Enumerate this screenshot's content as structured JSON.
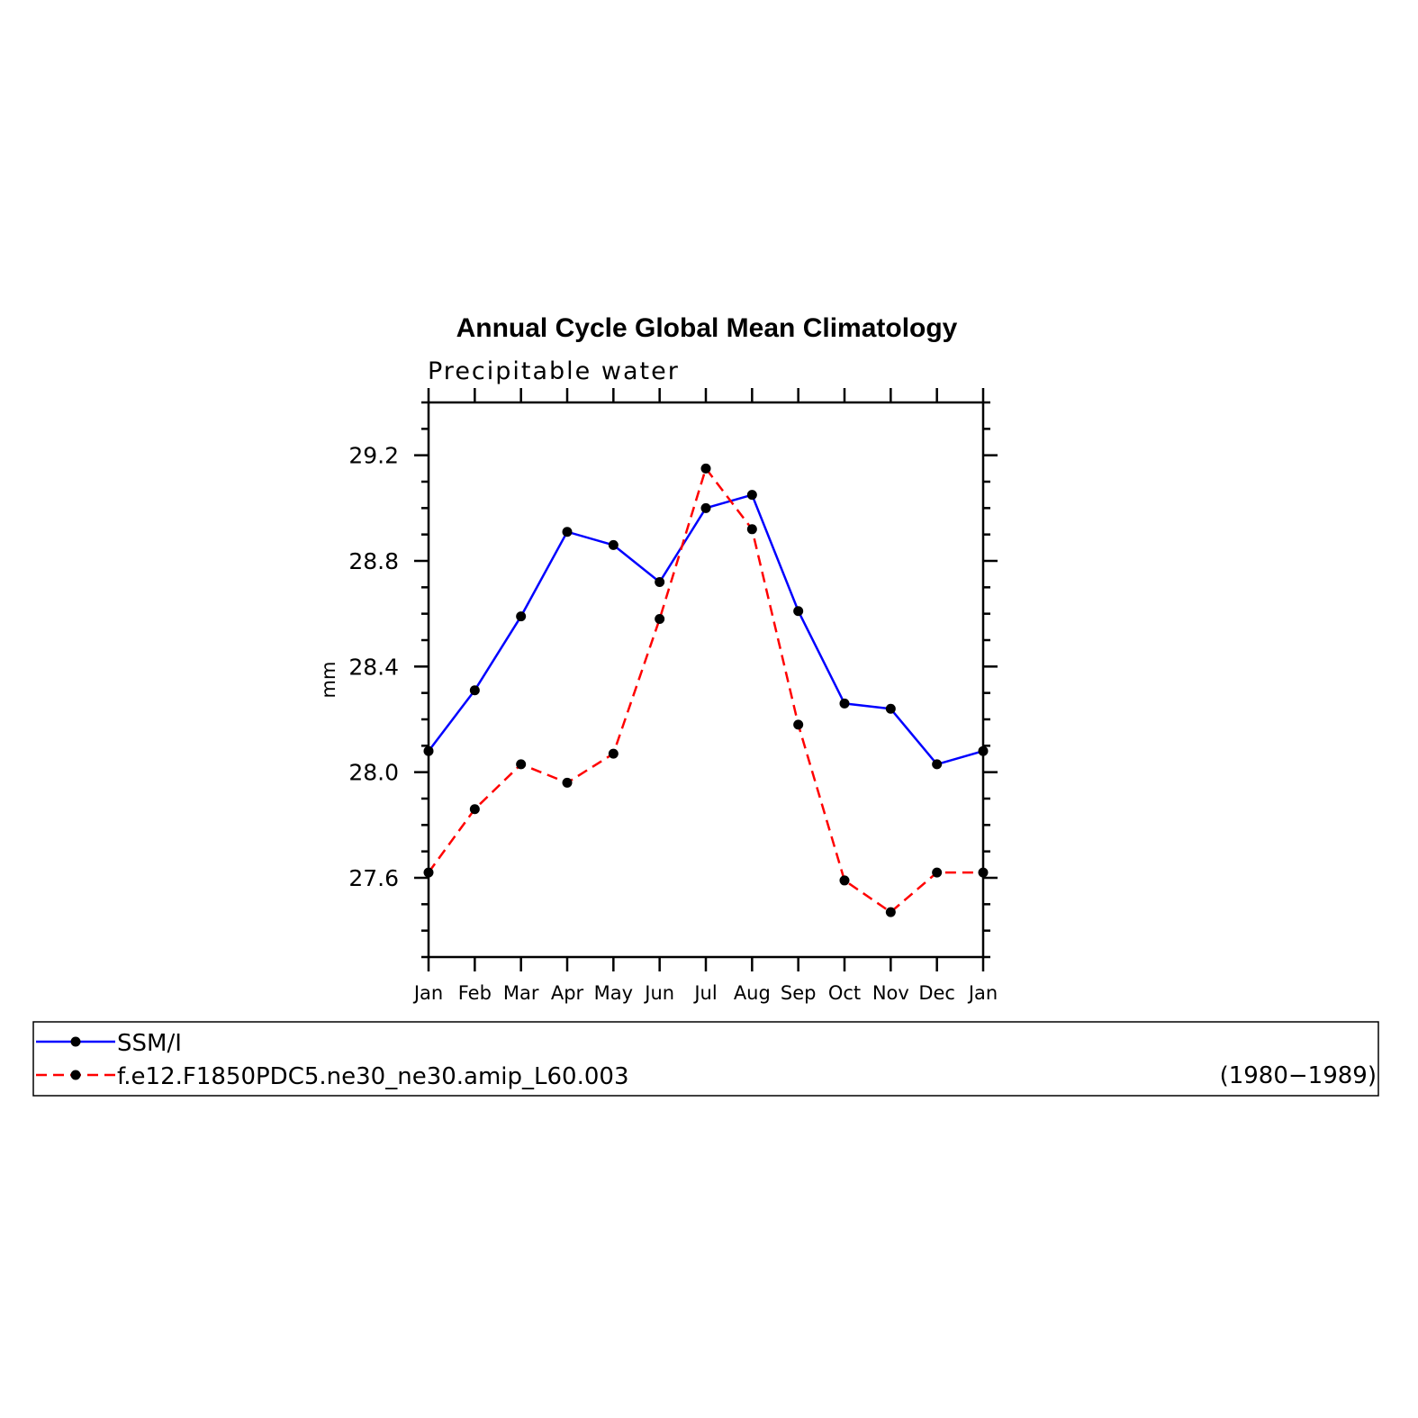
{
  "chart_data": {
    "type": "line",
    "title": "Annual Cycle Global Mean Climatology",
    "subtitle": "Precipitable water",
    "xlabel": "",
    "ylabel": "mm",
    "categories": [
      "Jan",
      "Feb",
      "Mar",
      "Apr",
      "May",
      "Jun",
      "Jul",
      "Aug",
      "Sep",
      "Oct",
      "Nov",
      "Dec",
      "Jan"
    ],
    "ylim": [
      27.3,
      29.4
    ],
    "yticks": [
      "27.6",
      "28.0",
      "28.4",
      "28.8",
      "29.2"
    ],
    "grid": false,
    "legend_position": "bottom",
    "series": [
      {
        "name": "SSM/I",
        "color": "#0000ff",
        "line_style": "solid",
        "marker": "filled-circle",
        "values": [
          28.08,
          28.31,
          28.59,
          28.91,
          28.86,
          28.72,
          29.0,
          29.05,
          28.61,
          28.26,
          28.24,
          28.03,
          28.08
        ]
      },
      {
        "name": "f.e12.F1850PDC5.ne30_ne30.amip_L60.003",
        "color": "#ff0000",
        "line_style": "dashed",
        "marker": "filled-circle",
        "values": [
          27.62,
          27.86,
          28.03,
          27.96,
          28.07,
          28.58,
          29.15,
          28.92,
          28.18,
          27.59,
          27.47,
          27.62,
          27.62
        ]
      }
    ],
    "legend_note": "(1980−1989)"
  }
}
